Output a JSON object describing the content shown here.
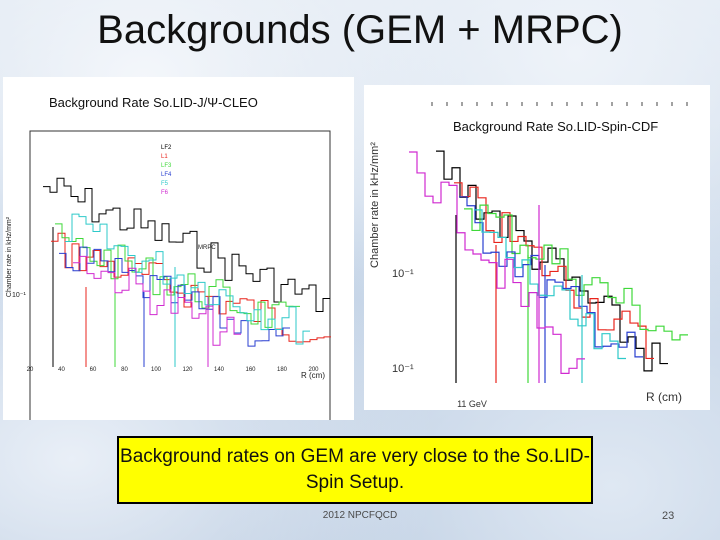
{
  "slide": {
    "title": "Backgrounds (GEM + MRPC)",
    "left_caption": "Background Rate So.LID-J/Ψ-CLEO",
    "right_caption": "Background Rate So.LID-Spin-CDF",
    "callout_text": "Background rates on GEM are very close to the So.LID-Spin Setup.",
    "footer": "2012 NPCFQCD",
    "page_number": "23"
  },
  "left_plot": {
    "ylabel": "Chamber rate in kHz/mm²",
    "xlabel": "R (cm)",
    "x_ticks": [
      "20",
      "40",
      "60",
      "80",
      "100",
      "120",
      "140",
      "160",
      "180",
      "200"
    ],
    "y_tick": "10⁻¹",
    "annotation": "MRPC",
    "legend": [
      "LF2",
      "L1",
      "LF3",
      "LF4",
      "F5",
      "F6"
    ],
    "legend_colors": [
      "#000000",
      "#e8241c",
      "#3fd83a",
      "#2a3fd0",
      "#2ec9c9",
      "#d02ad0"
    ]
  },
  "right_plot": {
    "ylabel": "Chamber rate in kHz/mm²",
    "xlabel": "R (cm)",
    "x_note": "11 GeV",
    "y_ticks": [
      "10⁻¹",
      "10⁻¹"
    ],
    "series_colors": [
      "#000000",
      "#e8241c",
      "#3fd83a",
      "#2a3fd0",
      "#2ec9c9",
      "#d02ad0"
    ]
  }
}
